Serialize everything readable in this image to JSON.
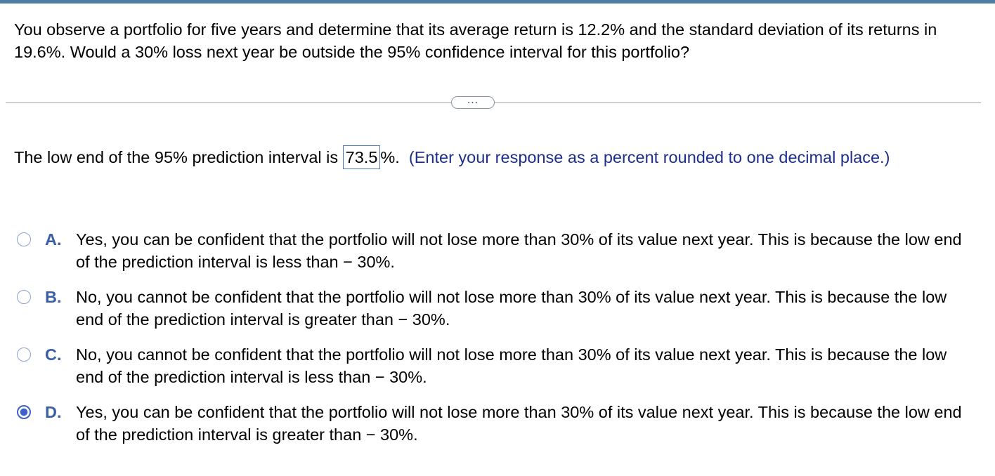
{
  "question": {
    "text": "You observe a portfolio for five years and determine that its average return is 12.2% and the standard deviation of its returns in 19.6%. Would a 30% loss next year be outside the 95% confidence interval for this portfolio?"
  },
  "divider": {
    "more_label": "..."
  },
  "answer": {
    "prefix": "The low end of the 95% prediction interval is ",
    "value": "73.5",
    "suffix": "%.",
    "instruction": "(Enter your response as a percent rounded to one decimal place.)"
  },
  "options": [
    {
      "letter": "A.",
      "text": "Yes, you can be confident that the portfolio will not lose more than 30% of its value next year. This is because the low end of the prediction interval is less than − 30%.",
      "selected": false
    },
    {
      "letter": "B.",
      "text": "No, you cannot be confident that the portfolio will not lose more than 30% of its value next year. This is because the low end of the prediction interval is greater than − 30%.",
      "selected": false
    },
    {
      "letter": "C.",
      "text": "No, you cannot be confident that the portfolio will not lose more than 30% of its value next year. This is because the low end of the prediction interval is less than − 30%.",
      "selected": false
    },
    {
      "letter": "D.",
      "text": "Yes, you can be confident that the portfolio will not lose more than 30% of its value next year. This is because the low end of the prediction interval is greater than − 30%.",
      "selected": true
    }
  ],
  "colors": {
    "accent": "#3d62c9",
    "instruction": "#1d2f8a",
    "top_bar": "#4d7fa3"
  }
}
